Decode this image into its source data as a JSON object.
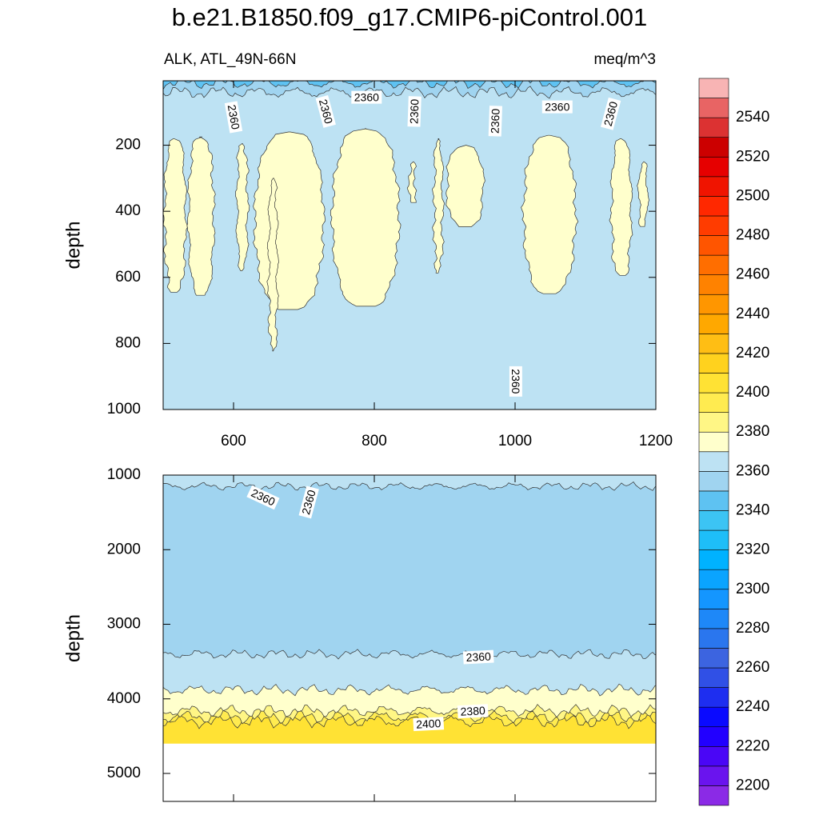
{
  "chart_data": {
    "type": "contour",
    "title": "b.e21.B1850.f09_g17.CMIP6-piControl.001",
    "subtitle_left": "ALK, ATL_49N-66N",
    "subtitle_right": "meq/m^3",
    "panels": [
      {
        "ylabel": "depth",
        "xlim": [
          500,
          1200
        ],
        "xticks": [
          600,
          800,
          1000,
          1200
        ],
        "show_xtick_labels": true,
        "ylim": [
          5,
          1000
        ],
        "yticks": [
          200,
          400,
          600,
          800,
          1000
        ],
        "layers": [
          {
            "level": 2340,
            "to": 12
          },
          {
            "level": 2350,
            "to": 40
          },
          {
            "level": 2360,
            "to": 1000
          }
        ],
        "columns": [
          {
            "level": 2370,
            "x": [
              502,
              532
            ],
            "depth": [
              180,
              650
            ]
          },
          {
            "level": 2370,
            "x": [
              536,
              572
            ],
            "depth": [
              175,
              660
            ]
          },
          {
            "level": 2370,
            "x": [
              605,
              620
            ],
            "depth": [
              195,
              580
            ]
          },
          {
            "level": 2370,
            "x": [
              630,
              728
            ],
            "depth": [
              160,
              700
            ]
          },
          {
            "level": 2370,
            "x": [
              650,
              662
            ],
            "depth": [
              300,
              830
            ]
          },
          {
            "level": 2370,
            "x": [
              740,
              835
            ],
            "depth": [
              150,
              690
            ]
          },
          {
            "level": 2370,
            "x": [
              850,
              858
            ],
            "depth": [
              250,
              380
            ]
          },
          {
            "level": 2370,
            "x": [
              885,
              897
            ],
            "depth": [
              180,
              590
            ]
          },
          {
            "level": 2370,
            "x": [
              903,
              955
            ],
            "depth": [
              200,
              450
            ]
          },
          {
            "level": 2370,
            "x": [
              1012,
              1086
            ],
            "depth": [
              170,
              650
            ]
          },
          {
            "level": 2370,
            "x": [
              1137,
              1165
            ],
            "depth": [
              180,
              600
            ]
          },
          {
            "level": 2370,
            "x": [
              1176,
              1188
            ],
            "depth": [
              250,
              450
            ]
          }
        ],
        "contour_labels": [
          {
            "x": 600,
            "depth": 115,
            "level": 2360
          },
          {
            "x": 731,
            "depth": 98,
            "level": 2360
          },
          {
            "x": 789,
            "depth": 55,
            "level": 2360
          },
          {
            "x": 857,
            "depth": 98,
            "level": 2360
          },
          {
            "x": 972,
            "depth": 127,
            "level": 2360
          },
          {
            "x": 1060,
            "depth": 84,
            "level": 2360
          },
          {
            "x": 1136,
            "depth": 105,
            "level": 2360
          },
          {
            "x": 1001,
            "depth": 915,
            "level": 2360
          }
        ]
      },
      {
        "ylabel": "depth",
        "xlim": [
          500,
          1200
        ],
        "xticks": [
          600,
          800,
          1000,
          1200
        ],
        "show_xtick_labels": false,
        "ylim": [
          1000,
          5375
        ],
        "yticks": [
          1000,
          2000,
          3000,
          4000,
          5000
        ],
        "layers": [
          {
            "level": 2360,
            "to": 1150
          },
          {
            "level": 2350,
            "to": 3400
          },
          {
            "level": 2360,
            "to": 3880
          },
          {
            "level": 2370,
            "to": 4160
          },
          {
            "level": 2380,
            "to": 4240
          },
          {
            "level": 2390,
            "to": 4300
          },
          {
            "level": 2400,
            "to": 4600
          }
        ],
        "columns": [],
        "contour_labels": [
          {
            "x": 642,
            "depth": 1300,
            "level": 2360
          },
          {
            "x": 707,
            "depth": 1364,
            "level": 2360
          },
          {
            "x": 948,
            "depth": 3440,
            "level": 2360
          },
          {
            "x": 940,
            "depth": 4166,
            "level": 2380
          },
          {
            "x": 877,
            "depth": 4337,
            "level": 2400
          }
        ]
      }
    ],
    "colorbar": {
      "levels": [
        2200,
        2210,
        2220,
        2230,
        2240,
        2250,
        2260,
        2270,
        2280,
        2290,
        2300,
        2310,
        2320,
        2330,
        2340,
        2350,
        2360,
        2370,
        2380,
        2390,
        2400,
        2410,
        2420,
        2430,
        2440,
        2450,
        2460,
        2470,
        2480,
        2490,
        2500,
        2510,
        2520,
        2530,
        2540,
        2550
      ],
      "colors": [
        "#8b2ae6",
        "#6a14ee",
        "#4a06f6",
        "#2200ff",
        "#0a0aff",
        "#1e2ef0",
        "#3050e6",
        "#3c64e0",
        "#2a76ee",
        "#1e88f8",
        "#1496ff",
        "#0aa4ff",
        "#00b2ff",
        "#1ebef8",
        "#3cc4f4",
        "#5ec2f2",
        "#a0d4f0",
        "#bde2f3",
        "#ffffcc",
        "#fff685",
        "#ffeb50",
        "#ffe234",
        "#ffd21e",
        "#ffbe14",
        "#ffa800",
        "#ff9600",
        "#ff8200",
        "#ff6e00",
        "#ff5500",
        "#ff3c00",
        "#ff2800",
        "#f01400",
        "#e60000",
        "#cc0000",
        "#dc3232",
        "#e86464",
        "#f8b4b4"
      ],
      "ticks": [
        2200,
        2220,
        2240,
        2260,
        2280,
        2300,
        2320,
        2340,
        2360,
        2380,
        2400,
        2420,
        2440,
        2460,
        2480,
        2500,
        2520,
        2540
      ]
    }
  }
}
